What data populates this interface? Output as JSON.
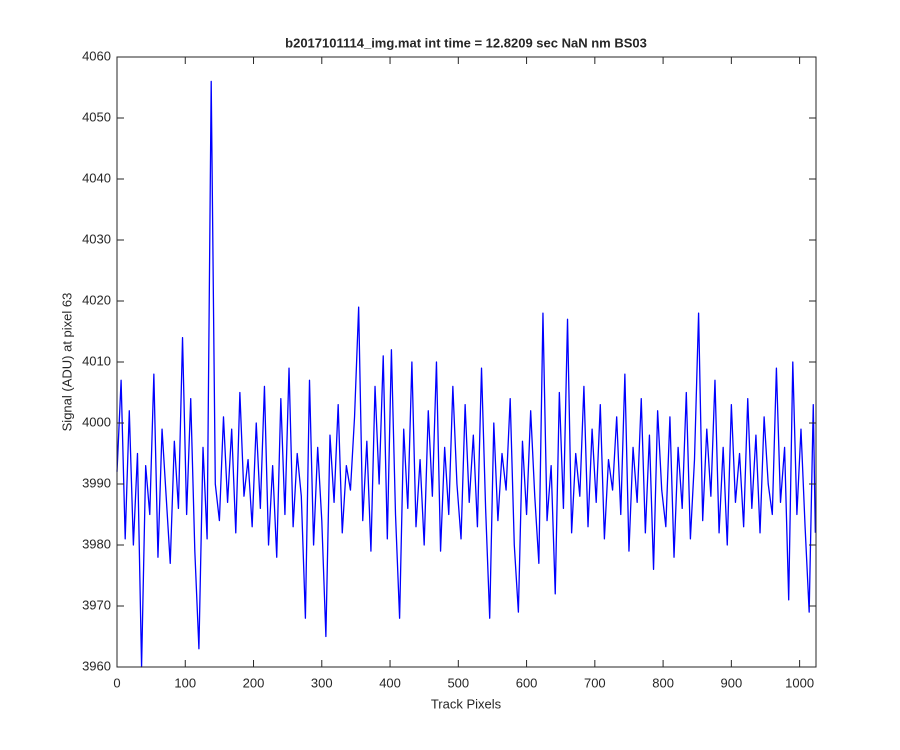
{
  "chart_data": {
    "type": "line",
    "title": "b2017101114_img.mat int time = 12.8209 sec  NaN nm BS03",
    "x_label": "Track Pixels",
    "y_label": "Signal (ADU) at pixel 63",
    "xlim": [
      0,
      1024
    ],
    "ylim": [
      3960,
      4060
    ],
    "xticks": [
      0,
      100,
      200,
      300,
      400,
      500,
      600,
      700,
      800,
      900,
      1000
    ],
    "yticks": [
      3960,
      3970,
      3980,
      3990,
      4000,
      4010,
      4020,
      4030,
      4040,
      4050,
      4060
    ],
    "grid": false,
    "x": [
      0,
      6,
      12,
      18,
      24,
      30,
      36,
      42,
      48,
      54,
      60,
      66,
      72,
      78,
      84,
      90,
      96,
      102,
      108,
      114,
      120,
      126,
      132,
      138,
      144,
      150,
      156,
      162,
      168,
      174,
      180,
      186,
      192,
      198,
      204,
      210,
      216,
      222,
      228,
      234,
      240,
      246,
      252,
      258,
      264,
      270,
      276,
      282,
      288,
      294,
      300,
      306,
      312,
      318,
      324,
      330,
      336,
      342,
      348,
      354,
      360,
      366,
      372,
      378,
      384,
      390,
      396,
      402,
      408,
      414,
      420,
      426,
      432,
      438,
      444,
      450,
      456,
      462,
      468,
      474,
      480,
      486,
      492,
      498,
      504,
      510,
      516,
      522,
      528,
      534,
      540,
      546,
      552,
      558,
      564,
      570,
      576,
      582,
      588,
      594,
      600,
      606,
      612,
      618,
      624,
      630,
      636,
      642,
      648,
      654,
      660,
      666,
      672,
      678,
      684,
      690,
      696,
      702,
      708,
      714,
      720,
      726,
      732,
      738,
      744,
      750,
      756,
      762,
      768,
      774,
      780,
      786,
      792,
      798,
      804,
      810,
      816,
      822,
      828,
      834,
      840,
      846,
      852,
      858,
      864,
      870,
      876,
      882,
      888,
      894,
      900,
      906,
      912,
      918,
      924,
      930,
      936,
      942,
      948,
      954,
      960,
      966,
      972,
      978,
      984,
      990,
      996,
      1002,
      1008,
      1014,
      1020,
      1023
    ],
    "series": [
      {
        "color": "#0000ff",
        "values": [
          3992,
          4007,
          3981,
          4002,
          3980,
          3995,
          3960,
          3993,
          3985,
          4008,
          3978,
          3999,
          3988,
          3977,
          3997,
          3986,
          4014,
          3985,
          4004,
          3979,
          3963,
          3996,
          3981,
          4056,
          3990,
          3984,
          4001,
          3987,
          3999,
          3982,
          4005,
          3988,
          3994,
          3983,
          4000,
          3986,
          4006,
          3980,
          3993,
          3978,
          4004,
          3985,
          4009,
          3983,
          3995,
          3988,
          3968,
          4007,
          3980,
          3996,
          3984,
          3965,
          3998,
          3987,
          4003,
          3982,
          3993,
          3989,
          4001,
          4019,
          3984,
          3997,
          3979,
          4006,
          3990,
          4011,
          3981,
          4012,
          3985,
          3968,
          3999,
          3986,
          4010,
          3983,
          3994,
          3980,
          4002,
          3988,
          4010,
          3979,
          3996,
          3985,
          4006,
          3990,
          3981,
          4003,
          3987,
          3998,
          3983,
          4009,
          3986,
          3968,
          4000,
          3984,
          3995,
          3989,
          4004,
          3980,
          3969,
          3997,
          3985,
          4002,
          3988,
          3977,
          4018,
          3984,
          3993,
          3972,
          4005,
          3986,
          4017,
          3982,
          3995,
          3988,
          4006,
          3983,
          3999,
          3987,
          4003,
          3981,
          3994,
          3989,
          4001,
          3985,
          4008,
          3979,
          3996,
          3987,
          4004,
          3982,
          3998,
          3976,
          4002,
          3989,
          3983,
          4001,
          3978,
          3996,
          3986,
          4005,
          3981,
          3994,
          4018,
          3984,
          3999,
          3988,
          4007,
          3982,
          3996,
          3980,
          4003,
          3987,
          3995,
          3983,
          4004,
          3986,
          3998,
          3982,
          4001,
          3990,
          3985,
          4009,
          3987,
          3996,
          3971,
          4010,
          3985,
          3999,
          3983,
          3969,
          4003,
          3982
        ]
      }
    ]
  }
}
